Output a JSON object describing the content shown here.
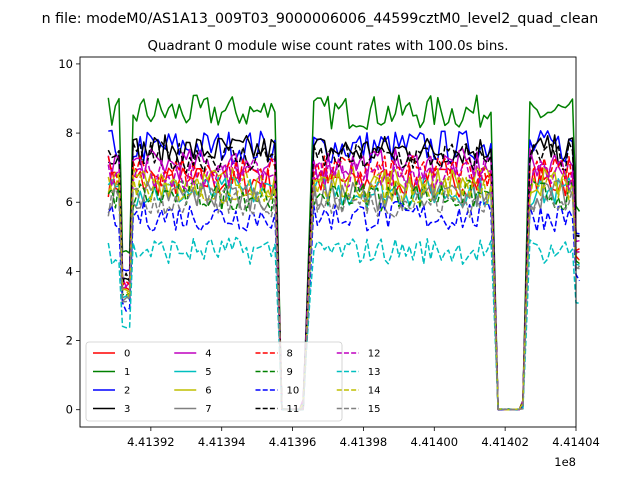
{
  "chart_data": {
    "type": "line",
    "suptitle": "n file: modeM0/AS1A13_009T03_9000006006_44599cztM0_level2_quad_clean",
    "title": "Quadrant 0 module wise count rates with 100.0s bins.",
    "xlabel": "",
    "ylabel": "",
    "x_offset_label": "1e8",
    "xlim": [
      4.4139,
      4.41404
    ],
    "ylim": [
      -0.5,
      10.2
    ],
    "xticks": [
      4.41392,
      4.41394,
      4.41396,
      4.41398,
      4.414,
      4.41402,
      4.41404
    ],
    "xtick_labels": [
      "4.41392",
      "4.41394",
      "4.41396",
      "4.41398",
      "4.41400",
      "4.41402",
      "4.41404"
    ],
    "yticks": [
      0,
      2,
      4,
      6,
      8,
      10
    ],
    "ytick_labels": [
      "0",
      "2",
      "4",
      "6",
      "8",
      "10"
    ],
    "grid": false,
    "legend_placement": "lower-left",
    "legend_columns": 4,
    "x_range": [
      4.413908,
      4.414041
    ],
    "x_step": 1e-06,
    "gaps": [
      {
        "x": [
          4.413955,
          4.413966
        ],
        "low_x": [
          4.413957,
          4.413963
        ]
      },
      {
        "x": [
          4.414016,
          4.414027
        ],
        "low_x": [
          4.414018,
          4.414025
        ]
      }
    ],
    "dips": [
      {
        "x": 4.413913,
        "depth": 0.5
      },
      {
        "x": 4.414041,
        "depth": 0.35
      }
    ],
    "series": [
      {
        "name": "0",
        "color": "#ff0000",
        "style": "solid",
        "level": 6.6,
        "amplitude": 0.45
      },
      {
        "name": "1",
        "color": "#008000",
        "style": "solid",
        "level": 8.6,
        "amplitude": 0.5
      },
      {
        "name": "2",
        "color": "#0000ff",
        "style": "solid",
        "level": 7.6,
        "amplitude": 0.5
      },
      {
        "name": "3",
        "color": "#000000",
        "style": "solid",
        "level": 7.5,
        "amplitude": 0.45
      },
      {
        "name": "4",
        "color": "#bf00bf",
        "style": "solid",
        "level": 7.1,
        "amplitude": 0.45
      },
      {
        "name": "5",
        "color": "#00bfbf",
        "style": "solid",
        "level": 6.3,
        "amplitude": 0.45
      },
      {
        "name": "6",
        "color": "#bfbf00",
        "style": "solid",
        "level": 6.6,
        "amplitude": 0.45
      },
      {
        "name": "7",
        "color": "#808080",
        "style": "solid",
        "level": 6.2,
        "amplitude": 0.45
      },
      {
        "name": "8",
        "color": "#ff0000",
        "style": "dashed",
        "level": 6.9,
        "amplitude": 0.45
      },
      {
        "name": "9",
        "color": "#008000",
        "style": "dashed",
        "level": 6.2,
        "amplitude": 0.45
      },
      {
        "name": "10",
        "color": "#0000ff",
        "style": "dashed",
        "level": 5.6,
        "amplitude": 0.45
      },
      {
        "name": "11",
        "color": "#000000",
        "style": "dashed",
        "level": 7.3,
        "amplitude": 0.45
      },
      {
        "name": "12",
        "color": "#bf00bf",
        "style": "dashed",
        "level": 6.8,
        "amplitude": 0.45
      },
      {
        "name": "13",
        "color": "#00bfbf",
        "style": "dashed",
        "level": 4.6,
        "amplitude": 0.4
      },
      {
        "name": "14",
        "color": "#bfbf00",
        "style": "dashed",
        "level": 6.4,
        "amplitude": 0.45
      },
      {
        "name": "15",
        "color": "#808080",
        "style": "dashed",
        "level": 6.0,
        "amplitude": 0.45
      }
    ]
  }
}
